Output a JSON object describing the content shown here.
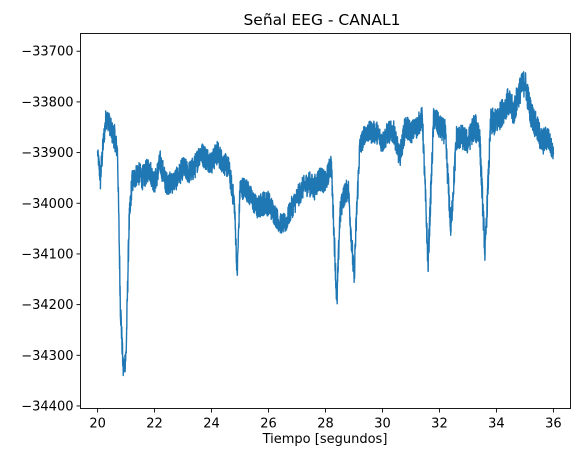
{
  "chart_data": {
    "type": "line",
    "title": "Señal EEG - CANAL1",
    "xlabel": "Tiempo [segundos]",
    "ylabel": "",
    "xlim": [
      19.4,
      36.6
    ],
    "ylim": [
      -34405,
      -33665
    ],
    "grid": false,
    "xticks": [
      20,
      22,
      24,
      26,
      28,
      30,
      32,
      34,
      36
    ],
    "xtick_labels": [
      "20",
      "22",
      "24",
      "26",
      "28",
      "30",
      "32",
      "34",
      "36"
    ],
    "yticks": [
      -34400,
      -34300,
      -34200,
      -34100,
      -34000,
      -33900,
      -33800,
      -33700
    ],
    "ytick_labels": [
      "−34400",
      "−34300",
      "−34200",
      "−34100",
      "−34000",
      "−33900",
      "−33800",
      "−33700"
    ],
    "series": [
      {
        "color": "#1f77b4",
        "x": [
          20.0,
          20.1,
          20.2,
          20.3,
          20.4,
          20.5,
          20.6,
          20.7,
          20.8,
          20.9,
          21.0,
          21.1,
          21.2,
          21.4,
          21.6,
          21.8,
          22.0,
          22.2,
          22.4,
          22.6,
          22.8,
          23.0,
          23.2,
          23.4,
          23.6,
          23.8,
          24.0,
          24.2,
          24.4,
          24.6,
          24.8,
          24.9,
          25.0,
          25.2,
          25.4,
          25.6,
          25.8,
          26.0,
          26.2,
          26.4,
          26.6,
          26.8,
          27.0,
          27.2,
          27.4,
          27.6,
          27.8,
          28.0,
          28.2,
          28.4,
          28.5,
          28.6,
          28.8,
          29.0,
          29.1,
          29.2,
          29.4,
          29.6,
          29.8,
          30.0,
          30.2,
          30.4,
          30.6,
          30.8,
          31.0,
          31.2,
          31.4,
          31.6,
          31.8,
          32.0,
          32.2,
          32.4,
          32.6,
          32.8,
          33.0,
          33.2,
          33.4,
          33.6,
          33.8,
          34.0,
          34.2,
          34.4,
          34.6,
          34.8,
          35.0,
          35.2,
          35.4,
          35.6,
          35.8,
          36.0
        ],
        "y": [
          -33900,
          -33950,
          -33880,
          -33830,
          -33840,
          -33860,
          -33870,
          -33900,
          -34200,
          -34330,
          -34300,
          -34050,
          -33960,
          -33940,
          -33950,
          -33930,
          -33960,
          -33920,
          -33960,
          -33960,
          -33950,
          -33930,
          -33940,
          -33930,
          -33900,
          -33910,
          -33920,
          -33900,
          -33920,
          -33930,
          -34000,
          -34140,
          -33970,
          -33970,
          -33990,
          -34010,
          -34000,
          -34000,
          -34020,
          -34040,
          -34040,
          -34010,
          -33990,
          -33970,
          -33960,
          -33970,
          -33950,
          -33960,
          -33920,
          -34200,
          -34030,
          -33990,
          -33970,
          -34150,
          -34010,
          -33890,
          -33860,
          -33860,
          -33860,
          -33880,
          -33860,
          -33860,
          -33910,
          -33850,
          -33860,
          -33850,
          -33830,
          -34120,
          -33830,
          -33850,
          -33860,
          -34050,
          -33870,
          -33870,
          -33880,
          -33850,
          -33860,
          -34100,
          -33840,
          -33840,
          -33820,
          -33800,
          -33820,
          -33780,
          -33760,
          -33820,
          -33850,
          -33880,
          -33870,
          -33900
        ],
        "noise": [
          20,
          55,
          40,
          45,
          40,
          45,
          50,
          40,
          60,
          40,
          50,
          60,
          50,
          45,
          50,
          50,
          45,
          50,
          45,
          45,
          45,
          45,
          45,
          50,
          45,
          50,
          45,
          50,
          45,
          45,
          45,
          40,
          45,
          45,
          45,
          45,
          50,
          50,
          45,
          40,
          40,
          45,
          45,
          45,
          50,
          50,
          50,
          45,
          45,
          50,
          55,
          45,
          45,
          55,
          55,
          45,
          40,
          45,
          45,
          45,
          45,
          45,
          45,
          50,
          45,
          45,
          45,
          55,
          50,
          50,
          50,
          55,
          50,
          50,
          50,
          55,
          60,
          50,
          55,
          55,
          55,
          55,
          60,
          55,
          55,
          55,
          55,
          55,
          50,
          30
        ]
      }
    ]
  }
}
